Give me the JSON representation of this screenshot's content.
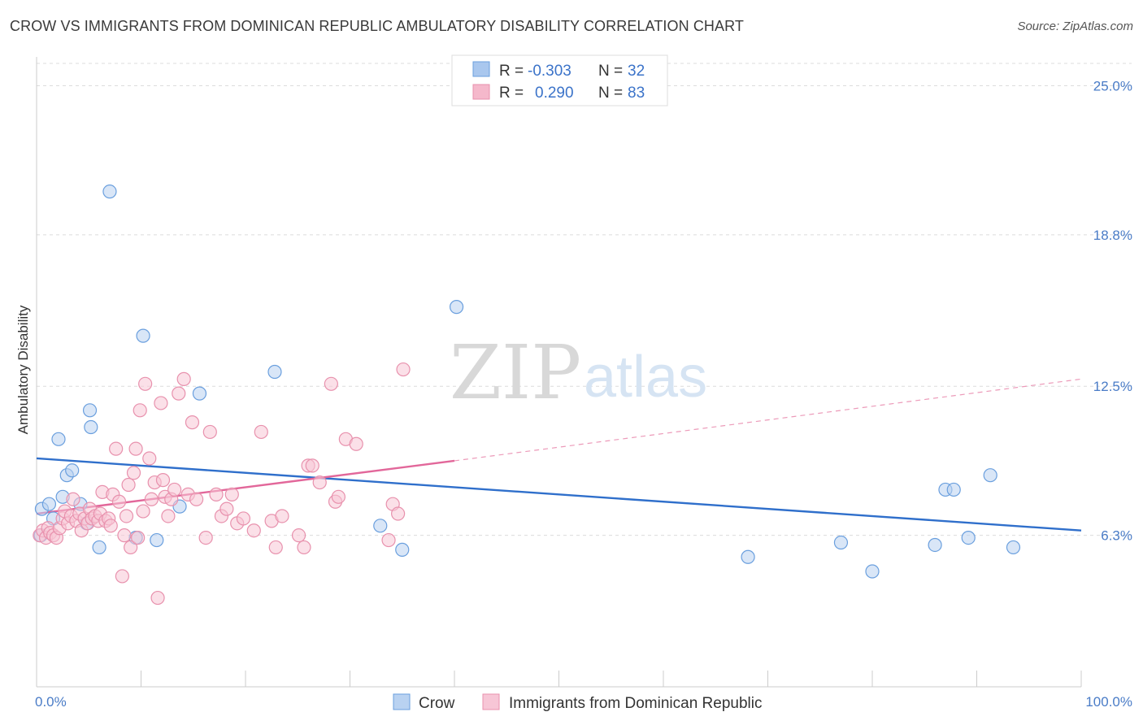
{
  "title": "CROW VS IMMIGRANTS FROM DOMINICAN REPUBLIC AMBULATORY DISABILITY CORRELATION CHART",
  "source": "Source: ZipAtlas.com",
  "watermark": {
    "zip": "ZIP",
    "atlas": "atlas"
  },
  "legend": {
    "r_label": "R =",
    "n_label": "N =",
    "rows": [
      {
        "r": "-0.303",
        "n": "32",
        "color": "#a9c7ee"
      },
      {
        "r": "0.290",
        "n": "83",
        "color": "#f5b8cb"
      }
    ]
  },
  "chart_data": {
    "type": "scatter",
    "title": "CROW VS IMMIGRANTS FROM DOMINICAN REPUBLIC AMBULATORY DISABILITY CORRELATION CHART",
    "xlabel": "",
    "ylabel": "Ambulatory Disability",
    "xlim": [
      0,
      100
    ],
    "ylim": [
      0,
      26.2
    ],
    "x_tick_labels": [
      "0.0%",
      "100.0%"
    ],
    "y_ticks": [
      6.3,
      12.5,
      18.8,
      25.0
    ],
    "y_tick_labels": [
      "6.3%",
      "12.5%",
      "18.8%",
      "25.0%"
    ],
    "grid": true,
    "legend_position": "top-center",
    "series": [
      {
        "name": "Crow",
        "color": "#6a9fde",
        "fill": "#b9d2f1",
        "points": [
          [
            0.5,
            7.4
          ],
          [
            1.2,
            7.6
          ],
          [
            1.6,
            7.0
          ],
          [
            2.1,
            10.3
          ],
          [
            2.5,
            7.9
          ],
          [
            2.9,
            8.8
          ],
          [
            3.4,
            9.0
          ],
          [
            4.2,
            7.6
          ],
          [
            4.8,
            6.8
          ],
          [
            5.1,
            11.5
          ],
          [
            5.2,
            10.8
          ],
          [
            6.0,
            5.8
          ],
          [
            7.0,
            20.6
          ],
          [
            9.5,
            6.2
          ],
          [
            10.2,
            14.6
          ],
          [
            11.5,
            6.1
          ],
          [
            13.7,
            7.5
          ],
          [
            15.6,
            12.2
          ],
          [
            22.8,
            13.1
          ],
          [
            32.9,
            6.7
          ],
          [
            35.0,
            5.7
          ],
          [
            40.2,
            15.8
          ],
          [
            68.1,
            5.4
          ],
          [
            77.0,
            6.0
          ],
          [
            80.0,
            4.8
          ],
          [
            86.0,
            5.9
          ],
          [
            87.0,
            8.2
          ],
          [
            87.8,
            8.2
          ],
          [
            89.2,
            6.2
          ],
          [
            91.3,
            8.8
          ],
          [
            93.5,
            5.8
          ],
          [
            0.4,
            6.3
          ]
        ]
      },
      {
        "name": "Immigrants from Dominican Republic",
        "color": "#e891ad",
        "fill": "#f7c6d6",
        "points": [
          [
            0.3,
            6.3
          ],
          [
            0.6,
            6.5
          ],
          [
            0.9,
            6.2
          ],
          [
            1.1,
            6.6
          ],
          [
            1.3,
            6.4
          ],
          [
            1.6,
            6.3
          ],
          [
            1.9,
            6.2
          ],
          [
            2.2,
            6.6
          ],
          [
            2.5,
            7.0
          ],
          [
            2.7,
            7.3
          ],
          [
            3.0,
            6.8
          ],
          [
            3.3,
            7.1
          ],
          [
            3.5,
            7.8
          ],
          [
            3.8,
            6.9
          ],
          [
            4.1,
            7.2
          ],
          [
            4.3,
            6.5
          ],
          [
            4.6,
            7.0
          ],
          [
            4.9,
            6.8
          ],
          [
            5.1,
            7.4
          ],
          [
            5.3,
            7.0
          ],
          [
            5.6,
            7.1
          ],
          [
            5.9,
            6.9
          ],
          [
            6.1,
            7.2
          ],
          [
            6.3,
            8.1
          ],
          [
            6.6,
            6.9
          ],
          [
            6.9,
            7.0
          ],
          [
            7.1,
            6.7
          ],
          [
            7.3,
            8.0
          ],
          [
            7.6,
            9.9
          ],
          [
            7.9,
            7.7
          ],
          [
            8.2,
            4.6
          ],
          [
            8.4,
            6.3
          ],
          [
            8.6,
            7.1
          ],
          [
            8.8,
            8.4
          ],
          [
            9.0,
            5.8
          ],
          [
            9.3,
            8.9
          ],
          [
            9.5,
            9.9
          ],
          [
            9.7,
            6.2
          ],
          [
            9.9,
            11.5
          ],
          [
            10.2,
            7.3
          ],
          [
            10.4,
            12.6
          ],
          [
            10.8,
            9.5
          ],
          [
            11.0,
            7.8
          ],
          [
            11.3,
            8.5
          ],
          [
            11.6,
            3.7
          ],
          [
            11.9,
            11.8
          ],
          [
            12.1,
            8.6
          ],
          [
            12.3,
            7.9
          ],
          [
            12.6,
            7.1
          ],
          [
            12.9,
            7.8
          ],
          [
            13.2,
            8.2
          ],
          [
            13.6,
            12.2
          ],
          [
            14.1,
            12.8
          ],
          [
            14.5,
            8.0
          ],
          [
            14.9,
            11.0
          ],
          [
            15.3,
            7.8
          ],
          [
            16.2,
            6.2
          ],
          [
            16.6,
            10.6
          ],
          [
            17.2,
            8.0
          ],
          [
            17.7,
            7.1
          ],
          [
            18.2,
            7.4
          ],
          [
            18.7,
            8.0
          ],
          [
            19.2,
            6.8
          ],
          [
            19.8,
            7.0
          ],
          [
            20.8,
            6.5
          ],
          [
            21.5,
            10.6
          ],
          [
            22.5,
            6.9
          ],
          [
            22.9,
            5.8
          ],
          [
            23.5,
            7.1
          ],
          [
            25.1,
            6.3
          ],
          [
            25.6,
            5.8
          ],
          [
            26.0,
            9.2
          ],
          [
            26.4,
            9.2
          ],
          [
            27.1,
            8.5
          ],
          [
            28.2,
            12.6
          ],
          [
            28.6,
            7.7
          ],
          [
            28.9,
            7.9
          ],
          [
            29.6,
            10.3
          ],
          [
            30.6,
            10.1
          ],
          [
            33.7,
            6.1
          ],
          [
            34.1,
            7.6
          ],
          [
            34.6,
            7.2
          ],
          [
            35.1,
            13.2
          ]
        ]
      }
    ],
    "trend_lines": [
      {
        "series": "Crow",
        "x": [
          0,
          100
        ],
        "y": [
          9.5,
          6.5
        ],
        "style": "solid"
      },
      {
        "series": "Immigrants from Dominican Republic",
        "x": [
          0,
          40
        ],
        "y": [
          7.2,
          9.4
        ],
        "style": "solid"
      },
      {
        "series": "Immigrants from Dominican Republic",
        "x": [
          40,
          100
        ],
        "y": [
          9.4,
          12.8
        ],
        "style": "dashed"
      }
    ]
  },
  "bottom_legend": [
    {
      "label": "Crow",
      "color": "#b9d2f1",
      "stroke": "#6a9fde"
    },
    {
      "label": "Immigrants from Dominican Republic",
      "color": "#f7c6d6",
      "stroke": "#e891ad"
    }
  ]
}
